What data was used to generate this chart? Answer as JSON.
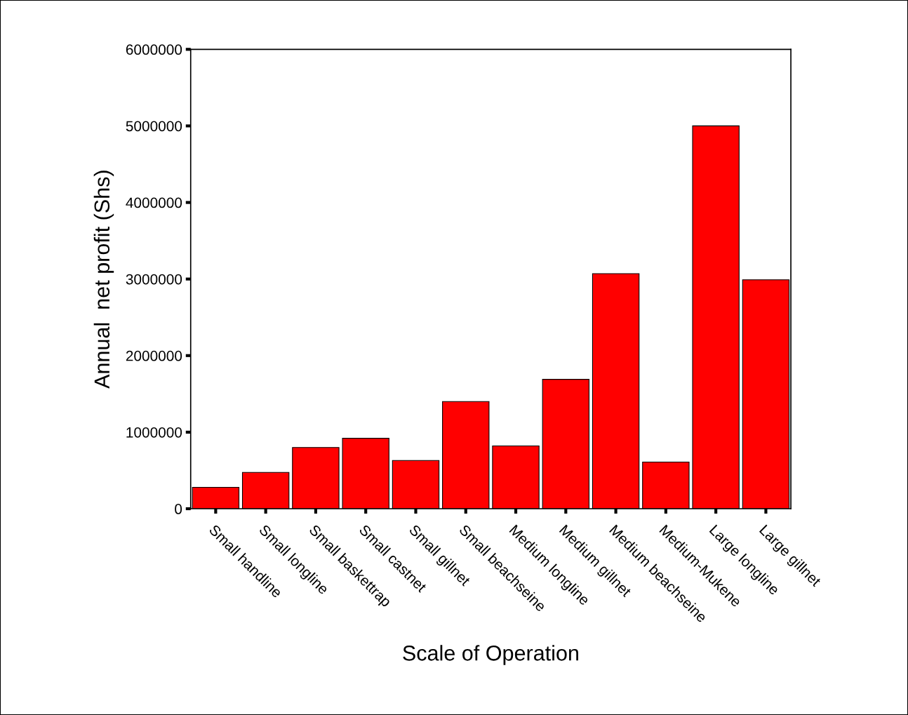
{
  "chart_data": {
    "type": "bar",
    "xlabel": "Scale of Operation",
    "ylabel": "Annual  net profit (Shs)",
    "categories": [
      "Small handline",
      "Small longline",
      "Small baskettrap",
      "Small castnet",
      "Small gillnet",
      "Small beachseine",
      "Medium longline",
      "Medium gillnet",
      "Medium beachseine",
      "Medium-Mukene",
      "Large longline",
      "Large gillnet"
    ],
    "values": [
      280000,
      475000,
      800000,
      920000,
      630000,
      1400000,
      820000,
      1690000,
      3070000,
      610000,
      5000000,
      2990000
    ],
    "color": "#ff0000",
    "ylim": [
      0,
      6000000
    ],
    "yticks": [
      0,
      1000000,
      2000000,
      3000000,
      4000000,
      5000000,
      6000000
    ],
    "grid": false,
    "legend": false
  }
}
